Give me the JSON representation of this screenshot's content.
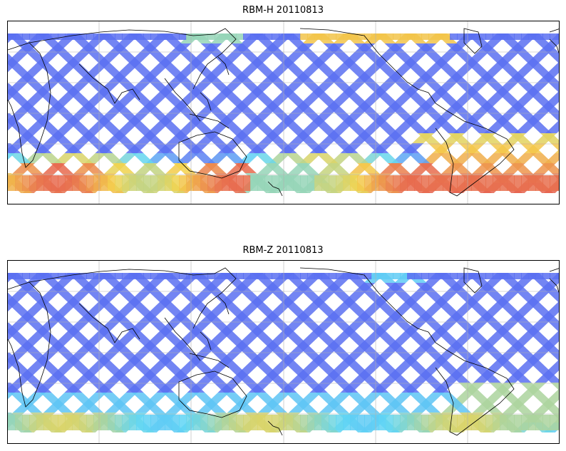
{
  "panels": [
    {
      "title": "RBM-H 20110813"
    },
    {
      "title": "RBM-Z 20110813"
    }
  ],
  "colors": {
    "track_low": "#5a5ef0",
    "track_mid": "#5fd6f5",
    "track_high": "#f4d24a",
    "track_peak": "#e5584e",
    "coast": "#000000",
    "grid": "#b0b0b0"
  },
  "chart_data": [
    {
      "type": "heatmap",
      "title": "RBM-H 20110813",
      "projection": "equirectangular (Pacific-centered)",
      "grid": true,
      "colormap": "jet",
      "legend": "none",
      "notes": "Satellite swath tracks; high values (red/orange) along southern high latitudes and North Atlantic/Arctic fringe; low values (blue) elsewhere."
    },
    {
      "type": "heatmap",
      "title": "RBM-Z 20110813",
      "projection": "equirectangular (Pacific-centered)",
      "grid": true,
      "colormap": "jet",
      "legend": "none",
      "notes": "Same swath tracks; mostly blue with cyan/yellow band along southern high latitudes and off southern South America."
    }
  ]
}
